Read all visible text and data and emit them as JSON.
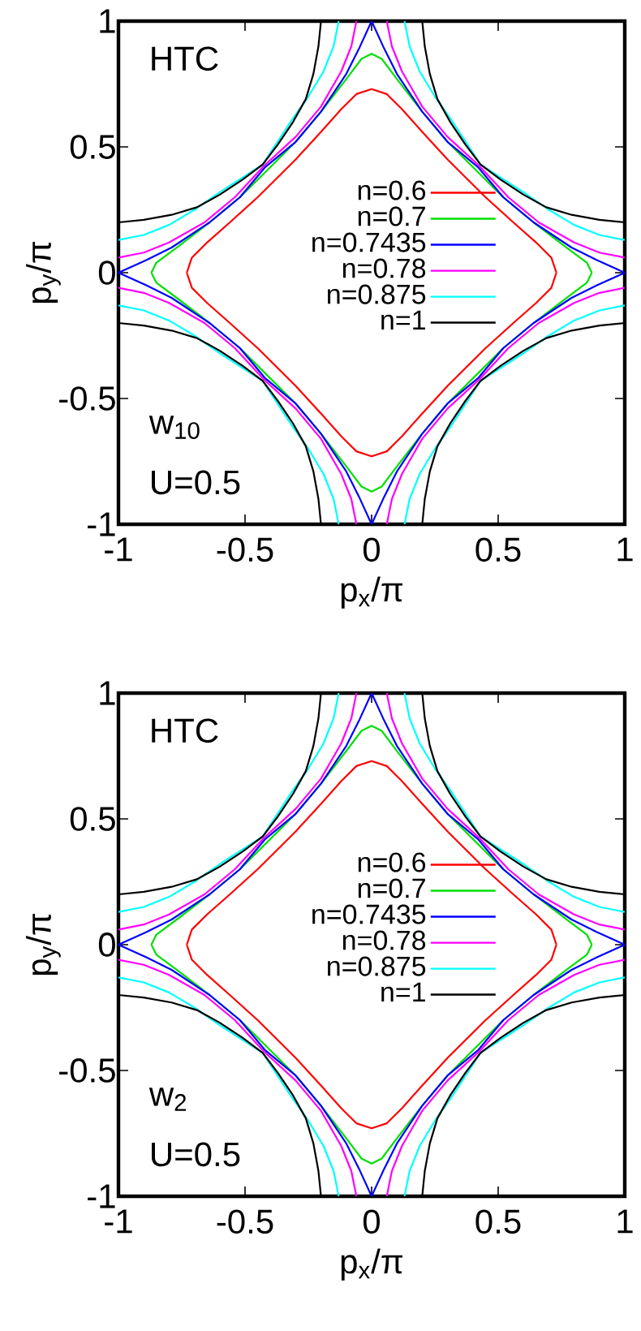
{
  "chart_data": [
    {
      "type": "line",
      "annotations": [
        "HTC",
        "w$_{10}$",
        "U=0.5"
      ],
      "xlabel": "p$_{x}$/π",
      "ylabel": "p$_{y}$/π",
      "xlim": [
        -1,
        1
      ],
      "ylim": [
        -1,
        1
      ],
      "xticks": [
        -1,
        -0.5,
        0,
        0.5,
        1
      ],
      "yticks": [
        -1,
        -0.5,
        0,
        0.5,
        1
      ],
      "legend": "center",
      "series": [
        {
          "name": "n=0.6",
          "color": "#ff0000",
          "x": [
            -0.73,
            -0.71,
            -0.65,
            -0.56,
            -0.45,
            -0.375,
            -0.3,
            -0.2,
            -0.12,
            -0.06,
            0,
            0.06,
            0.12,
            0.2,
            0.3,
            0.375,
            0.45,
            0.56,
            0.65,
            0.71,
            0.73,
            null,
            -0.73,
            -0.71,
            -0.65,
            -0.56,
            -0.45,
            -0.375,
            -0.3,
            -0.2,
            -0.12,
            -0.06,
            0,
            0.06,
            0.12,
            0.2,
            0.3,
            0.375,
            0.45,
            0.56,
            0.65,
            0.71,
            0.73
          ],
          "values": [
            0,
            0.06,
            0.12,
            0.2,
            0.3,
            0.375,
            0.45,
            0.56,
            0.65,
            0.71,
            0.73,
            0.71,
            0.65,
            0.56,
            0.45,
            0.375,
            0.3,
            0.2,
            0.12,
            0.06,
            0,
            null,
            0,
            -0.06,
            -0.12,
            -0.2,
            -0.3,
            -0.375,
            -0.45,
            -0.56,
            -0.65,
            -0.71,
            -0.73,
            -0.71,
            -0.65,
            -0.56,
            -0.45,
            -0.375,
            -0.3,
            -0.2,
            -0.12,
            -0.06,
            0
          ]
        },
        {
          "name": "n=0.7",
          "color": "#00e000",
          "x": [
            -0.87,
            -0.85,
            -0.77,
            -0.64,
            -0.52,
            -0.41,
            -0.3,
            -0.2,
            -0.1,
            -0.04,
            0,
            0.04,
            0.1,
            0.2,
            0.3,
            0.41,
            0.52,
            0.64,
            0.77,
            0.85,
            0.87,
            null,
            -0.87,
            -0.85,
            -0.77,
            -0.64,
            -0.52,
            -0.41,
            -0.3,
            -0.2,
            -0.1,
            -0.04,
            0,
            0.04,
            0.1,
            0.2,
            0.3,
            0.41,
            0.52,
            0.64,
            0.77,
            0.85,
            0.87
          ],
          "values": [
            0,
            0.04,
            0.1,
            0.2,
            0.3,
            0.41,
            0.52,
            0.64,
            0.77,
            0.85,
            0.87,
            0.85,
            0.77,
            0.64,
            0.52,
            0.41,
            0.3,
            0.2,
            0.1,
            0.04,
            0,
            null,
            0,
            -0.04,
            -0.1,
            -0.2,
            -0.3,
            -0.41,
            -0.52,
            -0.64,
            -0.77,
            -0.85,
            -0.87,
            -0.85,
            -0.77,
            -0.64,
            -0.52,
            -0.41,
            -0.3,
            -0.2,
            -0.1,
            -0.04,
            0
          ]
        },
        {
          "name": "n=0.7435",
          "color": "#0000ff",
          "x": [
            -1,
            -0.89,
            -0.79,
            -0.64,
            -0.52,
            -0.42,
            -0.3,
            -0.2,
            -0.1,
            -0.05,
            0,
            0.05,
            0.1,
            0.2,
            0.3,
            0.42,
            0.52,
            0.64,
            0.79,
            0.89,
            1,
            null,
            -1,
            -0.89,
            -0.79,
            -0.64,
            -0.52,
            -0.42,
            -0.3,
            -0.2,
            -0.1,
            -0.05,
            0,
            0.05,
            0.1,
            0.2,
            0.3,
            0.42,
            0.52,
            0.64,
            0.79,
            0.89,
            1
          ],
          "values": [
            0,
            0.05,
            0.1,
            0.2,
            0.3,
            0.42,
            0.52,
            0.64,
            0.79,
            0.89,
            1,
            0.89,
            0.79,
            0.64,
            0.52,
            0.42,
            0.3,
            0.2,
            0.1,
            0.05,
            0,
            null,
            0,
            -0.05,
            -0.1,
            -0.2,
            -0.3,
            -0.42,
            -0.52,
            -0.64,
            -0.79,
            -0.89,
            -1,
            -0.89,
            -0.79,
            -0.64,
            -0.52,
            -0.42,
            -0.3,
            -0.2,
            -0.1,
            -0.05,
            0
          ]
        },
        {
          "name": "n=0.78",
          "color": "#ff00ff",
          "x": [
            -1,
            -0.9,
            -0.8,
            -0.66,
            -0.54,
            -0.425,
            -0.3,
            -0.2,
            -0.12,
            -0.08,
            -0.06,
            null,
            0.06,
            0.08,
            0.12,
            0.2,
            0.3,
            0.425,
            0.54,
            0.66,
            0.8,
            0.9,
            1,
            null,
            -1,
            -0.9,
            -0.8,
            -0.66,
            -0.54,
            -0.425,
            -0.3,
            -0.2,
            -0.12,
            -0.08,
            -0.06,
            null,
            0.06,
            0.08,
            0.12,
            0.2,
            0.3,
            0.425,
            0.54,
            0.66,
            0.8,
            0.9,
            1
          ],
          "values": [
            0.06,
            0.08,
            0.12,
            0.2,
            0.3,
            0.425,
            0.54,
            0.66,
            0.8,
            0.9,
            1,
            null,
            1,
            0.9,
            0.8,
            0.66,
            0.54,
            0.425,
            0.3,
            0.2,
            0.12,
            0.08,
            0.06,
            null,
            -0.06,
            -0.08,
            -0.12,
            -0.2,
            -0.3,
            -0.425,
            -0.54,
            -0.66,
            -0.8,
            -0.9,
            -1,
            null,
            -1,
            -0.9,
            -0.8,
            -0.66,
            -0.54,
            -0.425,
            -0.3,
            -0.2,
            -0.12,
            -0.08,
            -0.06
          ]
        },
        {
          "name": "n=0.875",
          "color": "#00ffff",
          "x": [
            -1,
            -0.9,
            -0.8,
            -0.7,
            -0.6,
            -0.43,
            -0.32,
            -0.25,
            -0.19,
            -0.15,
            -0.13,
            null,
            0.13,
            0.15,
            0.19,
            0.25,
            0.32,
            0.43,
            0.6,
            0.7,
            0.8,
            0.9,
            1,
            null,
            -1,
            -0.9,
            -0.8,
            -0.7,
            -0.6,
            -0.43,
            -0.32,
            -0.25,
            -0.19,
            -0.15,
            -0.13,
            null,
            0.13,
            0.15,
            0.19,
            0.25,
            0.32,
            0.43,
            0.6,
            0.7,
            0.8,
            0.9,
            1
          ],
          "values": [
            0.13,
            0.15,
            0.19,
            0.25,
            0.32,
            0.43,
            0.6,
            0.7,
            0.8,
            0.9,
            1,
            null,
            1,
            0.9,
            0.8,
            0.7,
            0.6,
            0.43,
            0.32,
            0.25,
            0.19,
            0.15,
            0.13,
            null,
            -0.13,
            -0.15,
            -0.19,
            -0.25,
            -0.32,
            -0.43,
            -0.6,
            -0.7,
            -0.8,
            -0.9,
            -1,
            null,
            -1,
            -0.9,
            -0.8,
            -0.7,
            -0.6,
            -0.43,
            -0.32,
            -0.25,
            -0.19,
            -0.15,
            -0.13
          ]
        },
        {
          "name": "n=1",
          "color": "#000000",
          "x": [
            -1,
            -0.9,
            -0.79,
            -0.69,
            -0.6,
            -0.51,
            -0.43,
            -0.37,
            -0.31,
            -0.26,
            -0.23,
            -0.21,
            -0.2,
            null,
            0.2,
            0.21,
            0.23,
            0.26,
            0.31,
            0.37,
            0.43,
            0.51,
            0.6,
            0.69,
            0.79,
            0.9,
            1,
            null,
            -1,
            -0.9,
            -0.79,
            -0.69,
            -0.6,
            -0.51,
            -0.43,
            -0.37,
            -0.31,
            -0.26,
            -0.23,
            -0.21,
            -0.2,
            null,
            0.2,
            0.21,
            0.23,
            0.26,
            0.31,
            0.37,
            0.43,
            0.51,
            0.6,
            0.69,
            0.79,
            0.9,
            1
          ],
          "values": [
            0.2,
            0.21,
            0.23,
            0.26,
            0.31,
            0.37,
            0.43,
            0.51,
            0.6,
            0.69,
            0.79,
            0.9,
            1,
            null,
            1,
            0.9,
            0.79,
            0.69,
            0.6,
            0.51,
            0.43,
            0.37,
            0.31,
            0.26,
            0.23,
            0.21,
            0.2,
            null,
            -0.2,
            -0.21,
            -0.23,
            -0.26,
            -0.31,
            -0.37,
            -0.43,
            -0.51,
            -0.6,
            -0.69,
            -0.79,
            -0.9,
            -1,
            null,
            -1,
            -0.9,
            -0.79,
            -0.69,
            -0.6,
            -0.51,
            -0.43,
            -0.37,
            -0.31,
            -0.26,
            -0.23,
            -0.21,
            -0.2
          ]
        }
      ]
    },
    {
      "type": "line",
      "annotations": [
        "HTC",
        "w$_{2}$",
        "U=0.5"
      ],
      "xlabel": "p$_{x}$/π",
      "ylabel": "p$_{y}$/π",
      "xlim": [
        -1,
        1
      ],
      "ylim": [
        -1,
        1
      ],
      "xticks": [
        -1,
        -0.5,
        0,
        0.5,
        1
      ],
      "yticks": [
        -1,
        -0.5,
        0,
        0.5,
        1
      ],
      "legend": "center",
      "series": [
        {
          "name": "n=0.6",
          "color": "#ff0000",
          "x": [
            -0.73,
            -0.71,
            -0.65,
            -0.56,
            -0.45,
            -0.375,
            -0.3,
            -0.2,
            -0.12,
            -0.06,
            0,
            0.06,
            0.12,
            0.2,
            0.3,
            0.375,
            0.45,
            0.56,
            0.65,
            0.71,
            0.73,
            null,
            -0.73,
            -0.71,
            -0.65,
            -0.56,
            -0.45,
            -0.375,
            -0.3,
            -0.2,
            -0.12,
            -0.06,
            0,
            0.06,
            0.12,
            0.2,
            0.3,
            0.375,
            0.45,
            0.56,
            0.65,
            0.71,
            0.73
          ],
          "values": [
            0,
            0.06,
            0.12,
            0.2,
            0.3,
            0.375,
            0.45,
            0.56,
            0.65,
            0.71,
            0.73,
            0.71,
            0.65,
            0.56,
            0.45,
            0.375,
            0.3,
            0.2,
            0.12,
            0.06,
            0,
            null,
            0,
            -0.06,
            -0.12,
            -0.2,
            -0.3,
            -0.375,
            -0.45,
            -0.56,
            -0.65,
            -0.71,
            -0.73,
            -0.71,
            -0.65,
            -0.56,
            -0.45,
            -0.375,
            -0.3,
            -0.2,
            -0.12,
            -0.06,
            0
          ]
        },
        {
          "name": "n=0.7",
          "color": "#00e000",
          "x": [
            -0.87,
            -0.85,
            -0.77,
            -0.64,
            -0.52,
            -0.41,
            -0.3,
            -0.2,
            -0.1,
            -0.04,
            0,
            0.04,
            0.1,
            0.2,
            0.3,
            0.41,
            0.52,
            0.64,
            0.77,
            0.85,
            0.87,
            null,
            -0.87,
            -0.85,
            -0.77,
            -0.64,
            -0.52,
            -0.41,
            -0.3,
            -0.2,
            -0.1,
            -0.04,
            0,
            0.04,
            0.1,
            0.2,
            0.3,
            0.41,
            0.52,
            0.64,
            0.77,
            0.85,
            0.87
          ],
          "values": [
            0,
            0.04,
            0.1,
            0.2,
            0.3,
            0.41,
            0.52,
            0.64,
            0.77,
            0.85,
            0.87,
            0.85,
            0.77,
            0.64,
            0.52,
            0.41,
            0.3,
            0.2,
            0.1,
            0.04,
            0,
            null,
            0,
            -0.04,
            -0.1,
            -0.2,
            -0.3,
            -0.41,
            -0.52,
            -0.64,
            -0.77,
            -0.85,
            -0.87,
            -0.85,
            -0.77,
            -0.64,
            -0.52,
            -0.41,
            -0.3,
            -0.2,
            -0.1,
            -0.04,
            0
          ]
        },
        {
          "name": "n=0.7435",
          "color": "#0000ff",
          "x": [
            -1,
            -0.89,
            -0.79,
            -0.64,
            -0.52,
            -0.42,
            -0.3,
            -0.2,
            -0.1,
            -0.05,
            0,
            0.05,
            0.1,
            0.2,
            0.3,
            0.42,
            0.52,
            0.64,
            0.79,
            0.89,
            1,
            null,
            -1,
            -0.89,
            -0.79,
            -0.64,
            -0.52,
            -0.42,
            -0.3,
            -0.2,
            -0.1,
            -0.05,
            0,
            0.05,
            0.1,
            0.2,
            0.3,
            0.42,
            0.52,
            0.64,
            0.79,
            0.89,
            1
          ],
          "values": [
            0,
            0.05,
            0.1,
            0.2,
            0.3,
            0.42,
            0.52,
            0.64,
            0.79,
            0.89,
            1,
            0.89,
            0.79,
            0.64,
            0.52,
            0.42,
            0.3,
            0.2,
            0.1,
            0.05,
            0,
            null,
            0,
            -0.05,
            -0.1,
            -0.2,
            -0.3,
            -0.42,
            -0.52,
            -0.64,
            -0.79,
            -0.89,
            -1,
            -0.89,
            -0.79,
            -0.64,
            -0.52,
            -0.42,
            -0.3,
            -0.2,
            -0.1,
            -0.05,
            0
          ]
        },
        {
          "name": "n=0.78",
          "color": "#ff00ff",
          "x": [
            -1,
            -0.9,
            -0.8,
            -0.66,
            -0.54,
            -0.425,
            -0.3,
            -0.2,
            -0.12,
            -0.08,
            -0.06,
            null,
            0.06,
            0.08,
            0.12,
            0.2,
            0.3,
            0.425,
            0.54,
            0.66,
            0.8,
            0.9,
            1,
            null,
            -1,
            -0.9,
            -0.8,
            -0.66,
            -0.54,
            -0.425,
            -0.3,
            -0.2,
            -0.12,
            -0.08,
            -0.06,
            null,
            0.06,
            0.08,
            0.12,
            0.2,
            0.3,
            0.425,
            0.54,
            0.66,
            0.8,
            0.9,
            1
          ],
          "values": [
            0.06,
            0.08,
            0.12,
            0.2,
            0.3,
            0.425,
            0.54,
            0.66,
            0.8,
            0.9,
            1,
            null,
            1,
            0.9,
            0.8,
            0.66,
            0.54,
            0.425,
            0.3,
            0.2,
            0.12,
            0.08,
            0.06,
            null,
            -0.06,
            -0.08,
            -0.12,
            -0.2,
            -0.3,
            -0.425,
            -0.54,
            -0.66,
            -0.8,
            -0.9,
            -1,
            null,
            -1,
            -0.9,
            -0.8,
            -0.66,
            -0.54,
            -0.425,
            -0.3,
            -0.2,
            -0.12,
            -0.08,
            -0.06
          ]
        },
        {
          "name": "n=0.875",
          "color": "#00ffff",
          "x": [
            -1,
            -0.9,
            -0.8,
            -0.7,
            -0.6,
            -0.43,
            -0.32,
            -0.25,
            -0.19,
            -0.15,
            -0.13,
            null,
            0.13,
            0.15,
            0.19,
            0.25,
            0.32,
            0.43,
            0.6,
            0.7,
            0.8,
            0.9,
            1,
            null,
            -1,
            -0.9,
            -0.8,
            -0.7,
            -0.6,
            -0.43,
            -0.32,
            -0.25,
            -0.19,
            -0.15,
            -0.13,
            null,
            0.13,
            0.15,
            0.19,
            0.25,
            0.32,
            0.43,
            0.6,
            0.7,
            0.8,
            0.9,
            1
          ],
          "values": [
            0.13,
            0.15,
            0.19,
            0.25,
            0.32,
            0.43,
            0.6,
            0.7,
            0.8,
            0.9,
            1,
            null,
            1,
            0.9,
            0.8,
            0.7,
            0.6,
            0.43,
            0.32,
            0.25,
            0.19,
            0.15,
            0.13,
            null,
            -0.13,
            -0.15,
            -0.19,
            -0.25,
            -0.32,
            -0.43,
            -0.6,
            -0.7,
            -0.8,
            -0.9,
            -1,
            null,
            -1,
            -0.9,
            -0.8,
            -0.7,
            -0.6,
            -0.43,
            -0.32,
            -0.25,
            -0.19,
            -0.15,
            -0.13
          ]
        },
        {
          "name": "n=1",
          "color": "#000000",
          "x": [
            -1,
            -0.9,
            -0.79,
            -0.69,
            -0.6,
            -0.51,
            -0.43,
            -0.37,
            -0.31,
            -0.26,
            -0.23,
            -0.21,
            -0.2,
            null,
            0.2,
            0.21,
            0.23,
            0.26,
            0.31,
            0.37,
            0.43,
            0.51,
            0.6,
            0.69,
            0.79,
            0.9,
            1,
            null,
            -1,
            -0.9,
            -0.79,
            -0.69,
            -0.6,
            -0.51,
            -0.43,
            -0.37,
            -0.31,
            -0.26,
            -0.23,
            -0.21,
            -0.2,
            null,
            0.2,
            0.21,
            0.23,
            0.26,
            0.31,
            0.37,
            0.43,
            0.51,
            0.6,
            0.69,
            0.79,
            0.9,
            1
          ],
          "values": [
            0.2,
            0.21,
            0.23,
            0.26,
            0.31,
            0.37,
            0.43,
            0.51,
            0.6,
            0.69,
            0.79,
            0.9,
            1,
            null,
            1,
            0.9,
            0.79,
            0.69,
            0.6,
            0.51,
            0.43,
            0.37,
            0.31,
            0.26,
            0.23,
            0.21,
            0.2,
            null,
            -0.2,
            -0.21,
            -0.23,
            -0.26,
            -0.31,
            -0.37,
            -0.43,
            -0.51,
            -0.6,
            -0.69,
            -0.79,
            -0.9,
            -1,
            null,
            -1,
            -0.9,
            -0.79,
            -0.69,
            -0.6,
            -0.51,
            -0.43,
            -0.37,
            -0.31,
            -0.26,
            -0.23,
            -0.21,
            -0.2
          ]
        }
      ]
    }
  ]
}
